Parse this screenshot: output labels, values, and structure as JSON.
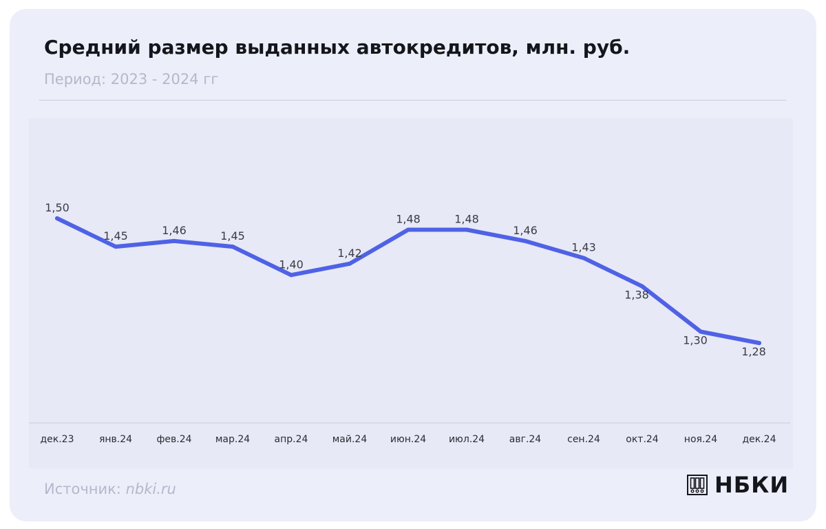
{
  "header": {
    "title": "Средний размер выданных автокредитов, млн. руб.",
    "subtitle": "Период: 2023 - 2024 гг"
  },
  "footer": {
    "source_prefix": "Источник: ",
    "source_link": "nbki.ru",
    "logo_text": "НБКИ",
    "logo_icon": "nbki-logo-mark-icon"
  },
  "colors": {
    "line": "#4f62e6",
    "label": "#3a3b45",
    "axis": "#c8cbde"
  },
  "chart_data": {
    "type": "line",
    "title": "Средний размер выданных автокредитов, млн. руб.",
    "subtitle": "Период: 2023 - 2024 гг",
    "xlabel": "",
    "ylabel": "",
    "categories": [
      "дек.23",
      "янв.24",
      "фев.24",
      "мар.24",
      "апр.24",
      "май.24",
      "июн.24",
      "июл.24",
      "авг.24",
      "сен.24",
      "окт.24",
      "ноя.24",
      "дек.24"
    ],
    "series": [
      {
        "values": [
          1.5,
          1.45,
          1.46,
          1.45,
          1.4,
          1.42,
          1.48,
          1.48,
          1.46,
          1.43,
          1.38,
          1.3,
          1.28
        ],
        "labels": [
          "1,50",
          "1,45",
          "1,46",
          "1,45",
          "1,40",
          "1,42",
          "1,48",
          "1,48",
          "1,46",
          "1,43",
          "1,38",
          "1,30",
          "1,28"
        ]
      }
    ],
    "label_placement": [
      "above",
      "above",
      "above",
      "above",
      "above",
      "above",
      "above",
      "above",
      "above",
      "above",
      "below",
      "below",
      "below"
    ],
    "ylim": [
      1.0,
      1.7
    ],
    "grid": false,
    "legend": "none"
  }
}
